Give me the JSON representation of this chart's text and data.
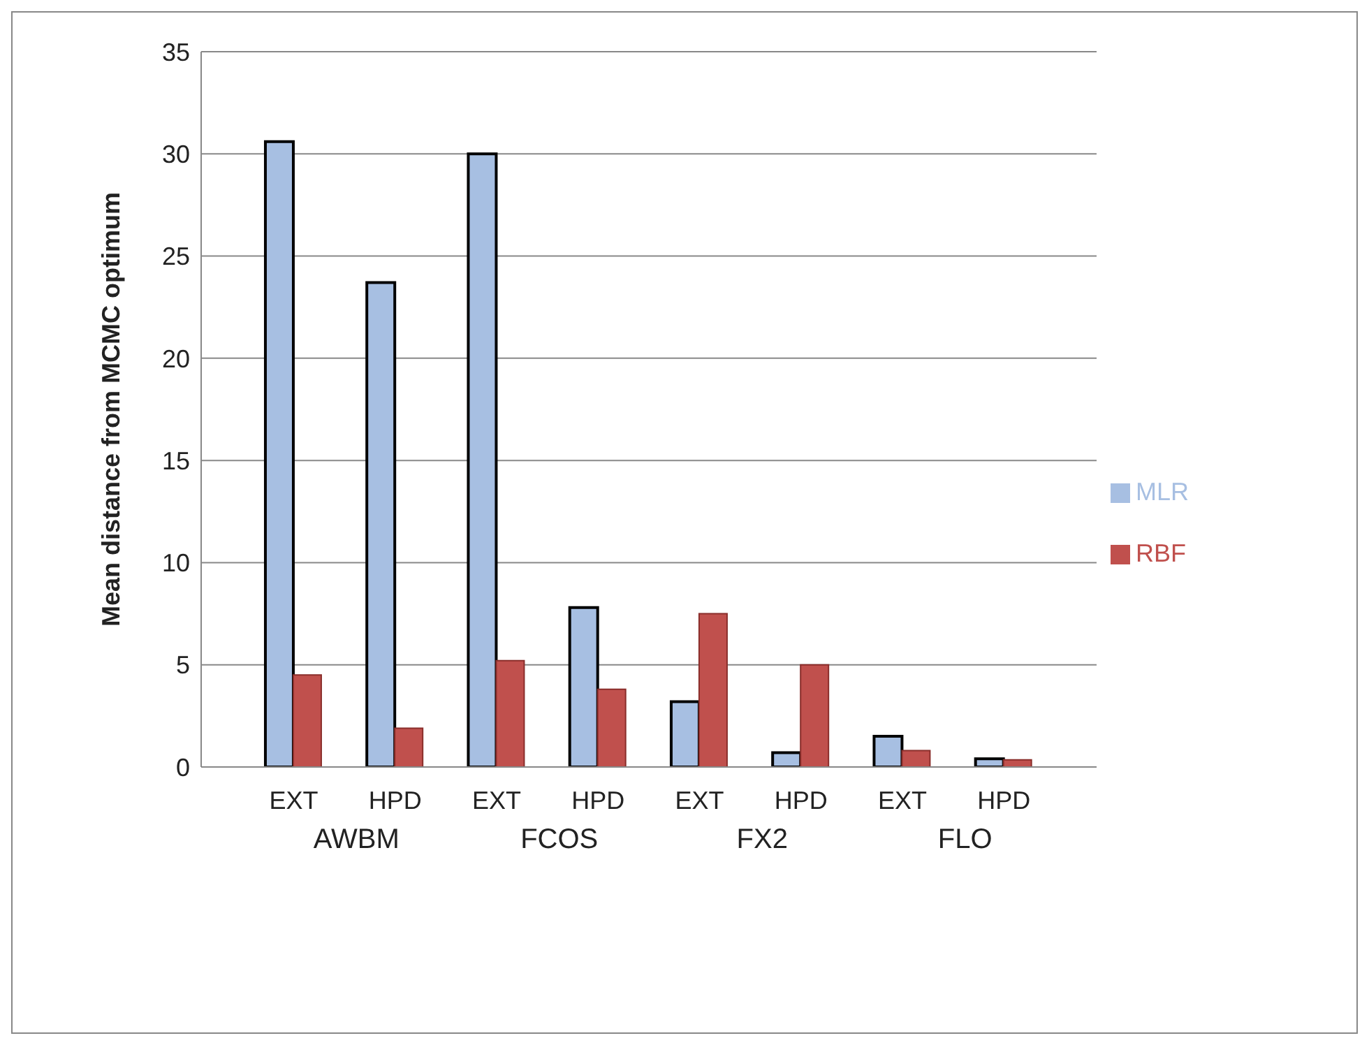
{
  "chart_data": {
    "type": "bar",
    "ylabel": "Mean distance from MCMC optimum",
    "categories": [
      "EXT",
      "HPD",
      "EXT",
      "HPD",
      "EXT",
      "HPD",
      "EXT",
      "HPD"
    ],
    "annotations": [
      "AWBM",
      "FCOS",
      "FX2",
      "FLO"
    ],
    "series": [
      {
        "name": "MLR",
        "color": "#a7bfe2",
        "values": [
          30.6,
          23.7,
          30.0,
          7.8,
          3.2,
          0.7,
          1.5,
          0.4
        ]
      },
      {
        "name": "RBF",
        "color": "#c0504d",
        "values": [
          4.5,
          1.9,
          5.2,
          3.8,
          7.5,
          5.0,
          0.8,
          0.35
        ]
      }
    ],
    "ylim": [
      0,
      35
    ],
    "yticks": [
      0,
      5,
      10,
      15,
      20,
      25,
      30,
      35
    ],
    "grid": "y",
    "legend": "right"
  }
}
